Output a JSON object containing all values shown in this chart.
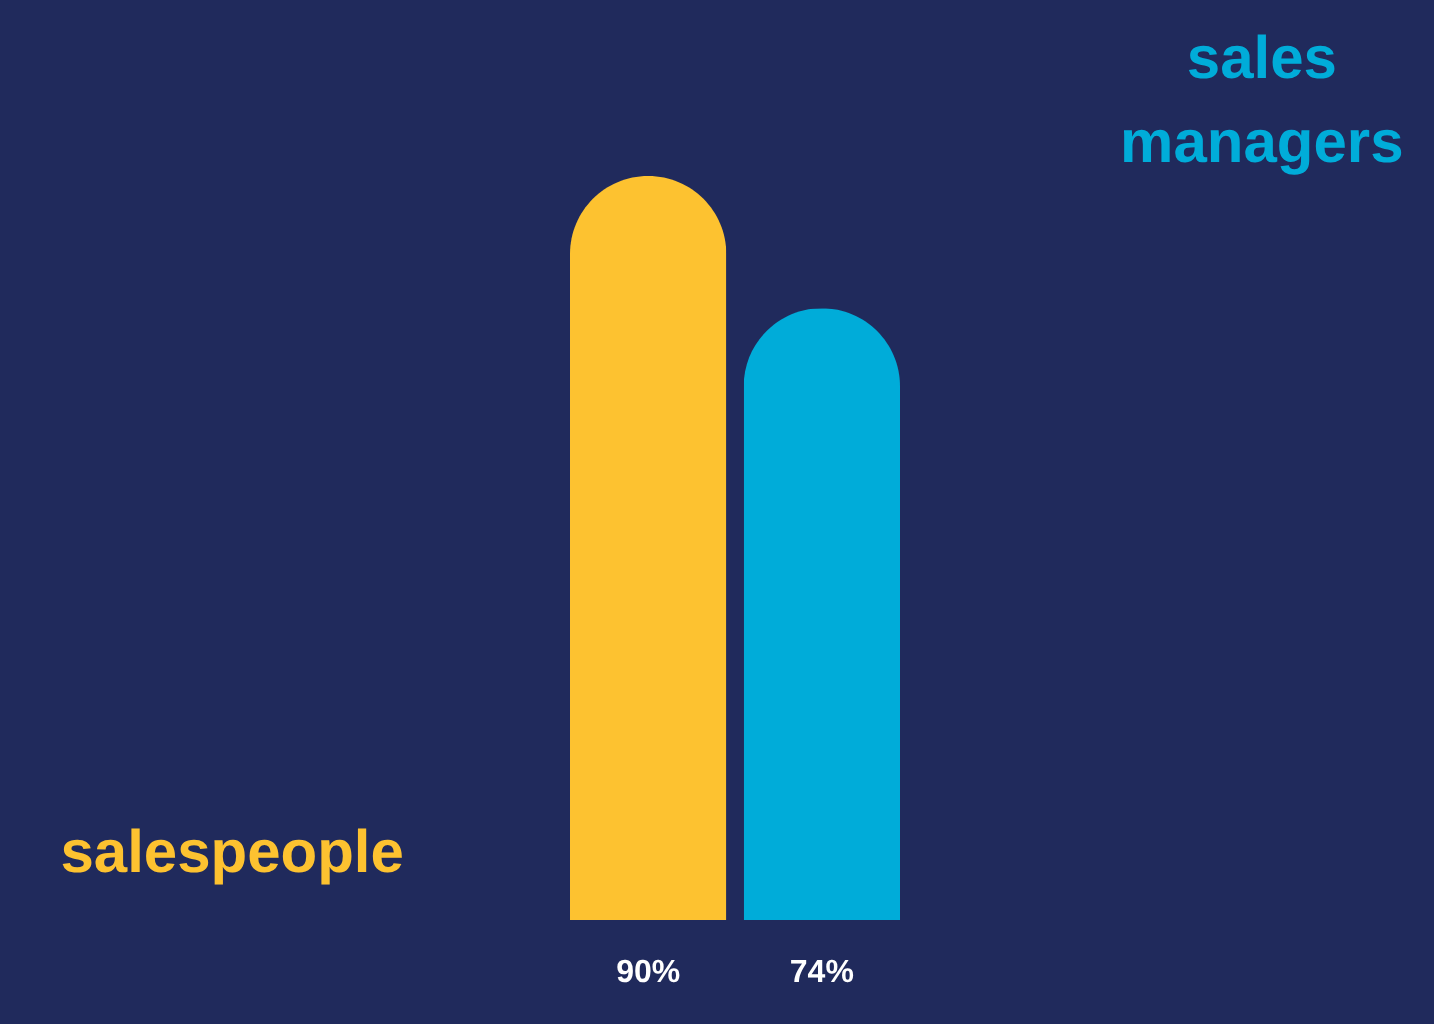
{
  "chart_data": {
    "type": "bar",
    "categories": [
      null
    ],
    "series": [
      {
        "name": "salespeople",
        "color": "#fdc230",
        "values": [
          90
        ],
        "value_labels": [
          "90%"
        ]
      },
      {
        "name": "sales managers",
        "color": "#00acd9",
        "values": [
          74
        ],
        "value_labels": [
          "74%"
        ]
      }
    ],
    "data_labels": true
  }
}
